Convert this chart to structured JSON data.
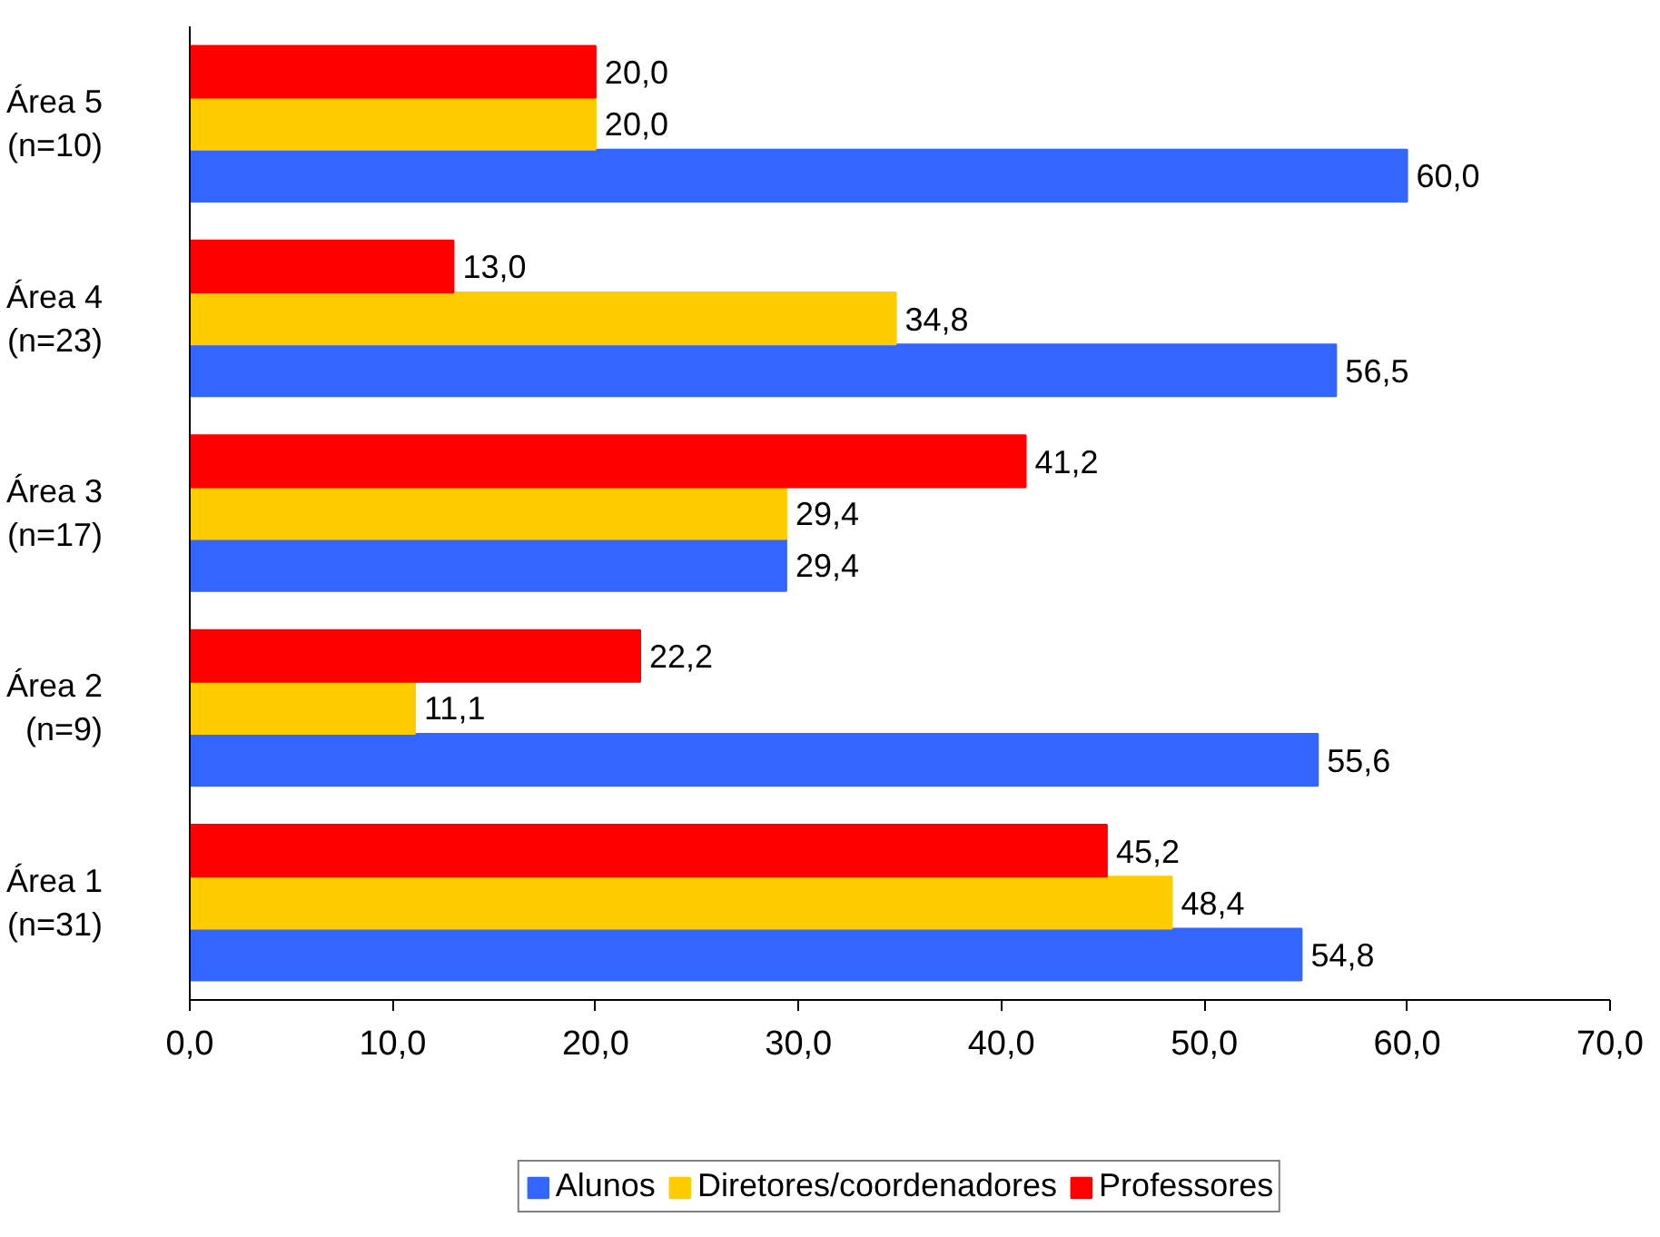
{
  "chart_data": {
    "type": "bar",
    "orientation": "horizontal",
    "categories": [
      "Área 5\n(n=10)",
      "Área 4\n(n=23)",
      "Área 3\n(n=17)",
      "Área 2\n(n=9)",
      "Área 1\n(n=31)"
    ],
    "series": [
      {
        "name": "Alunos",
        "color": "#3366ff",
        "values": [
          60.0,
          56.5,
          29.4,
          55.6,
          54.8
        ],
        "value_labels": [
          "60,0",
          "56,5",
          "29,4",
          "55,6",
          "54,8"
        ]
      },
      {
        "name": "Diretores/coordenadores",
        "color": "#ffcc00",
        "values": [
          20.0,
          34.8,
          29.4,
          11.1,
          48.4
        ],
        "value_labels": [
          "20,0",
          "34,8",
          "29,4",
          "11,1",
          "48,4"
        ]
      },
      {
        "name": "Professores",
        "color": "#ff0000",
        "values": [
          20.0,
          13.0,
          41.2,
          22.2,
          45.2
        ],
        "value_labels": [
          "20,0",
          "13,0",
          "41,2",
          "22,2",
          "45,2"
        ]
      }
    ],
    "xlim": [
      0,
      70
    ],
    "xticks": [
      {
        "value": 0,
        "label": "0,0"
      },
      {
        "value": 10,
        "label": "10,0"
      },
      {
        "value": 20,
        "label": "20,0"
      },
      {
        "value": 30,
        "label": "30,0"
      },
      {
        "value": 40,
        "label": "40,0"
      },
      {
        "value": 50,
        "label": "50,0"
      },
      {
        "value": 60,
        "label": "60,0"
      },
      {
        "value": 70,
        "label": "70,0"
      }
    ],
    "grid": false,
    "legend": "bottom"
  }
}
